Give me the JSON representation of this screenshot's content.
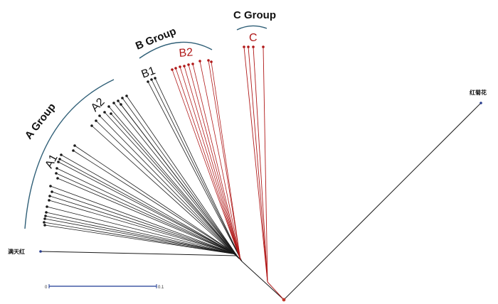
{
  "groups": {
    "a": "A Group",
    "b": "B Group",
    "c": "C Group"
  },
  "subgroups": {
    "a1": "A1",
    "a2": "A2",
    "b1": "B1",
    "b2": "B2",
    "c": "C"
  },
  "leaves": {
    "outgroup_left": "满天红",
    "outgroup_right": "红菊花"
  },
  "scale_bar": {
    "start": "0",
    "end": "0.1"
  },
  "colors": {
    "black_branch": "#1a1a1a",
    "red_branch": "#b01818",
    "arc": "#2f5f77",
    "root": "#c0392b",
    "tip": "#1a1a1a"
  }
}
